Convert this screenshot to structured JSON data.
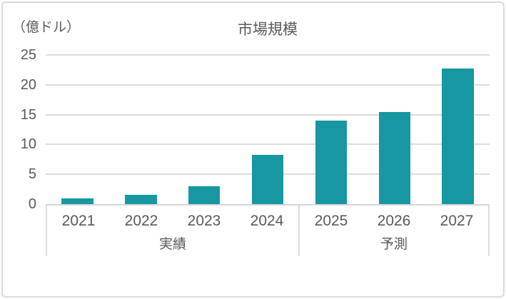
{
  "chart_data": {
    "type": "bar",
    "title": "市場規模",
    "unit_label": "（億ドル）",
    "categories": [
      "2021",
      "2022",
      "2023",
      "2024",
      "2025",
      "2026",
      "2027"
    ],
    "values": [
      0.9,
      1.5,
      3.0,
      8.3,
      14.0,
      15.4,
      22.7
    ],
    "groups": [
      {
        "label": "実績",
        "span": 4
      },
      {
        "label": "予測",
        "span": 3
      }
    ],
    "ylim": [
      0,
      25
    ],
    "yticks": [
      0,
      5,
      10,
      15,
      20,
      25
    ],
    "grid": true,
    "legend": "none",
    "bar_color": "#1797A1",
    "text_color": "#595959",
    "grid_color": "#dcdcdc",
    "border_color": "#d9d9d9"
  }
}
